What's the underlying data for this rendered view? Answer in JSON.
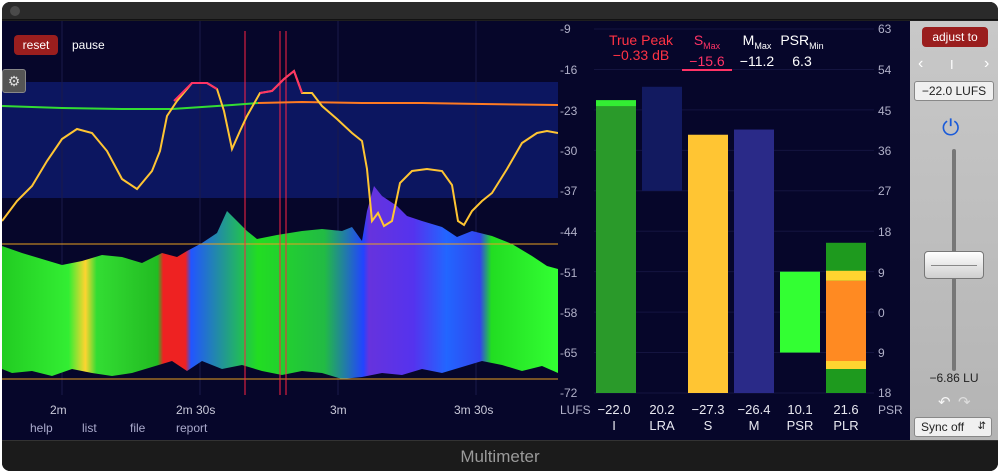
{
  "window": {
    "title": "Multimeter"
  },
  "history": {
    "reset_label": "reset",
    "pause_label": "pause",
    "time_labels": [
      "2m",
      "2m 30s",
      "3m",
      "3m 30s"
    ],
    "links": [
      "help",
      "list",
      "file",
      "report"
    ]
  },
  "scale": {
    "lufs_ticks": [
      "-9",
      "-16",
      "-23",
      "-30",
      "-37",
      "-44",
      "-51",
      "-58",
      "-65",
      "-72"
    ],
    "lufs_unit": "LUFS",
    "psr_ticks": [
      "63",
      "54",
      "45",
      "36",
      "27",
      "18",
      "9",
      "0",
      "9",
      "18"
    ],
    "psr_unit": "PSR"
  },
  "readouts": {
    "true_peak": {
      "title": "True Peak",
      "value": "−0.33 dB"
    },
    "s_max": {
      "title": "S",
      "sub": "Max",
      "value": "−15.6"
    },
    "m_max": {
      "title": "M",
      "sub": "Max",
      "value": "−11.2"
    },
    "psr_min": {
      "title": "PSR",
      "sub": "Min",
      "value": "6.3"
    }
  },
  "meters": [
    {
      "value": "−22.0",
      "label": "I",
      "level": -22.0
    },
    {
      "value": "20.2",
      "label": "LRA",
      "range": [
        -37,
        -19
      ]
    },
    {
      "value": "−27.3",
      "label": "S",
      "level": -27.3
    },
    {
      "value": "−26.4",
      "label": "M",
      "level": -26.4
    },
    {
      "value": "10.1",
      "label": "PSR",
      "range": [
        -65,
        -51
      ]
    },
    {
      "value": "21.6",
      "label": "PLR",
      "range": [
        -72,
        -46
      ]
    }
  ],
  "side": {
    "adjust_label": "adjust to",
    "mode_value": "I",
    "target_value": "−22.0 LUFS",
    "gain_value": "−6.86 LU",
    "sync_value": "Sync off"
  },
  "colors": {
    "true_peak": "#ff3344",
    "s_max": "#ff3366",
    "integrated": "#2a9a2a",
    "short_term": "#ffc533",
    "momentary": "#2a2a88",
    "psr": "#33ff33",
    "plr": "#ff8a22"
  }
}
